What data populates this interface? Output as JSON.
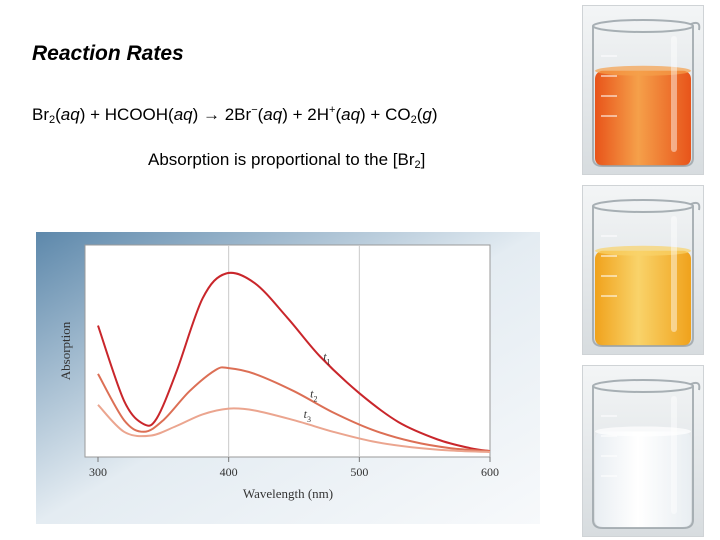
{
  "slide": {
    "title": "Reaction Rates",
    "equation": {
      "br2": "Br",
      "br2_sub": "2",
      "br2_state": "(aq)",
      "plus1": " + HCOOH(",
      "hcooh_state": "aq",
      "arrow_part": ") → 2Br",
      "br_minus": "−",
      "br_state_open": "(",
      "br_state": "aq",
      "plus2": ") + 2H",
      "h_plus": "+",
      "h_state_open": "(",
      "h_state": "aq",
      "plus3": ") + CO",
      "co2_sub": "2",
      "co2_open": "(",
      "co2_state": "g",
      "close": ")"
    },
    "note": {
      "text": "Absorption is proportional to the [Br",
      "sub": "2",
      "end": "]"
    }
  },
  "chart_data": {
    "type": "line",
    "xlabel": "Wavelength (nm)",
    "ylabel": "Absorption",
    "xlim": [
      300,
      600
    ],
    "ylim": [
      0,
      1
    ],
    "x_ticks": [
      "300",
      "400",
      "500",
      "600"
    ],
    "grid": true,
    "colors": {
      "panel": "#3f6b91",
      "plot_bg": "#ffffff",
      "grid": "#c9c9c9"
    },
    "series": [
      {
        "name": "t1",
        "label_main": "t",
        "label_sub": "1",
        "color": "#c9262b",
        "x": [
          300,
          320,
          335,
          345,
          360,
          380,
          398,
          420,
          445,
          470,
          500,
          530,
          560,
          585,
          600
        ],
        "y": [
          0.66,
          0.27,
          0.15,
          0.18,
          0.42,
          0.8,
          0.93,
          0.88,
          0.7,
          0.5,
          0.31,
          0.16,
          0.07,
          0.025,
          0.01
        ]
      },
      {
        "name": "t2",
        "label_main": "t",
        "label_sub": "2",
        "color": "#dc6f55",
        "x": [
          300,
          320,
          335,
          350,
          370,
          390,
          400,
          420,
          450,
          480,
          510,
          540,
          570,
          600
        ],
        "y": [
          0.41,
          0.17,
          0.11,
          0.17,
          0.32,
          0.43,
          0.44,
          0.41,
          0.32,
          0.21,
          0.12,
          0.06,
          0.025,
          0.01
        ]
      },
      {
        "name": "t3",
        "label_main": "t",
        "label_sub": "3",
        "color": "#eba58f",
        "x": [
          300,
          320,
          340,
          360,
          380,
          400,
          420,
          450,
          480,
          510,
          540,
          570,
          600
        ],
        "y": [
          0.25,
          0.11,
          0.09,
          0.14,
          0.2,
          0.23,
          0.22,
          0.17,
          0.11,
          0.06,
          0.03,
          0.013,
          0.005
        ]
      }
    ]
  },
  "photos": {
    "beakers": [
      {
        "liquid_color": "#e8541a",
        "liquid_highlight": "#f5a04a"
      },
      {
        "liquid_color": "#f0a21c",
        "liquid_highlight": "#f9d36a"
      },
      {
        "liquid_color": "#e9eef2",
        "liquid_highlight": "#ffffff"
      }
    ]
  }
}
